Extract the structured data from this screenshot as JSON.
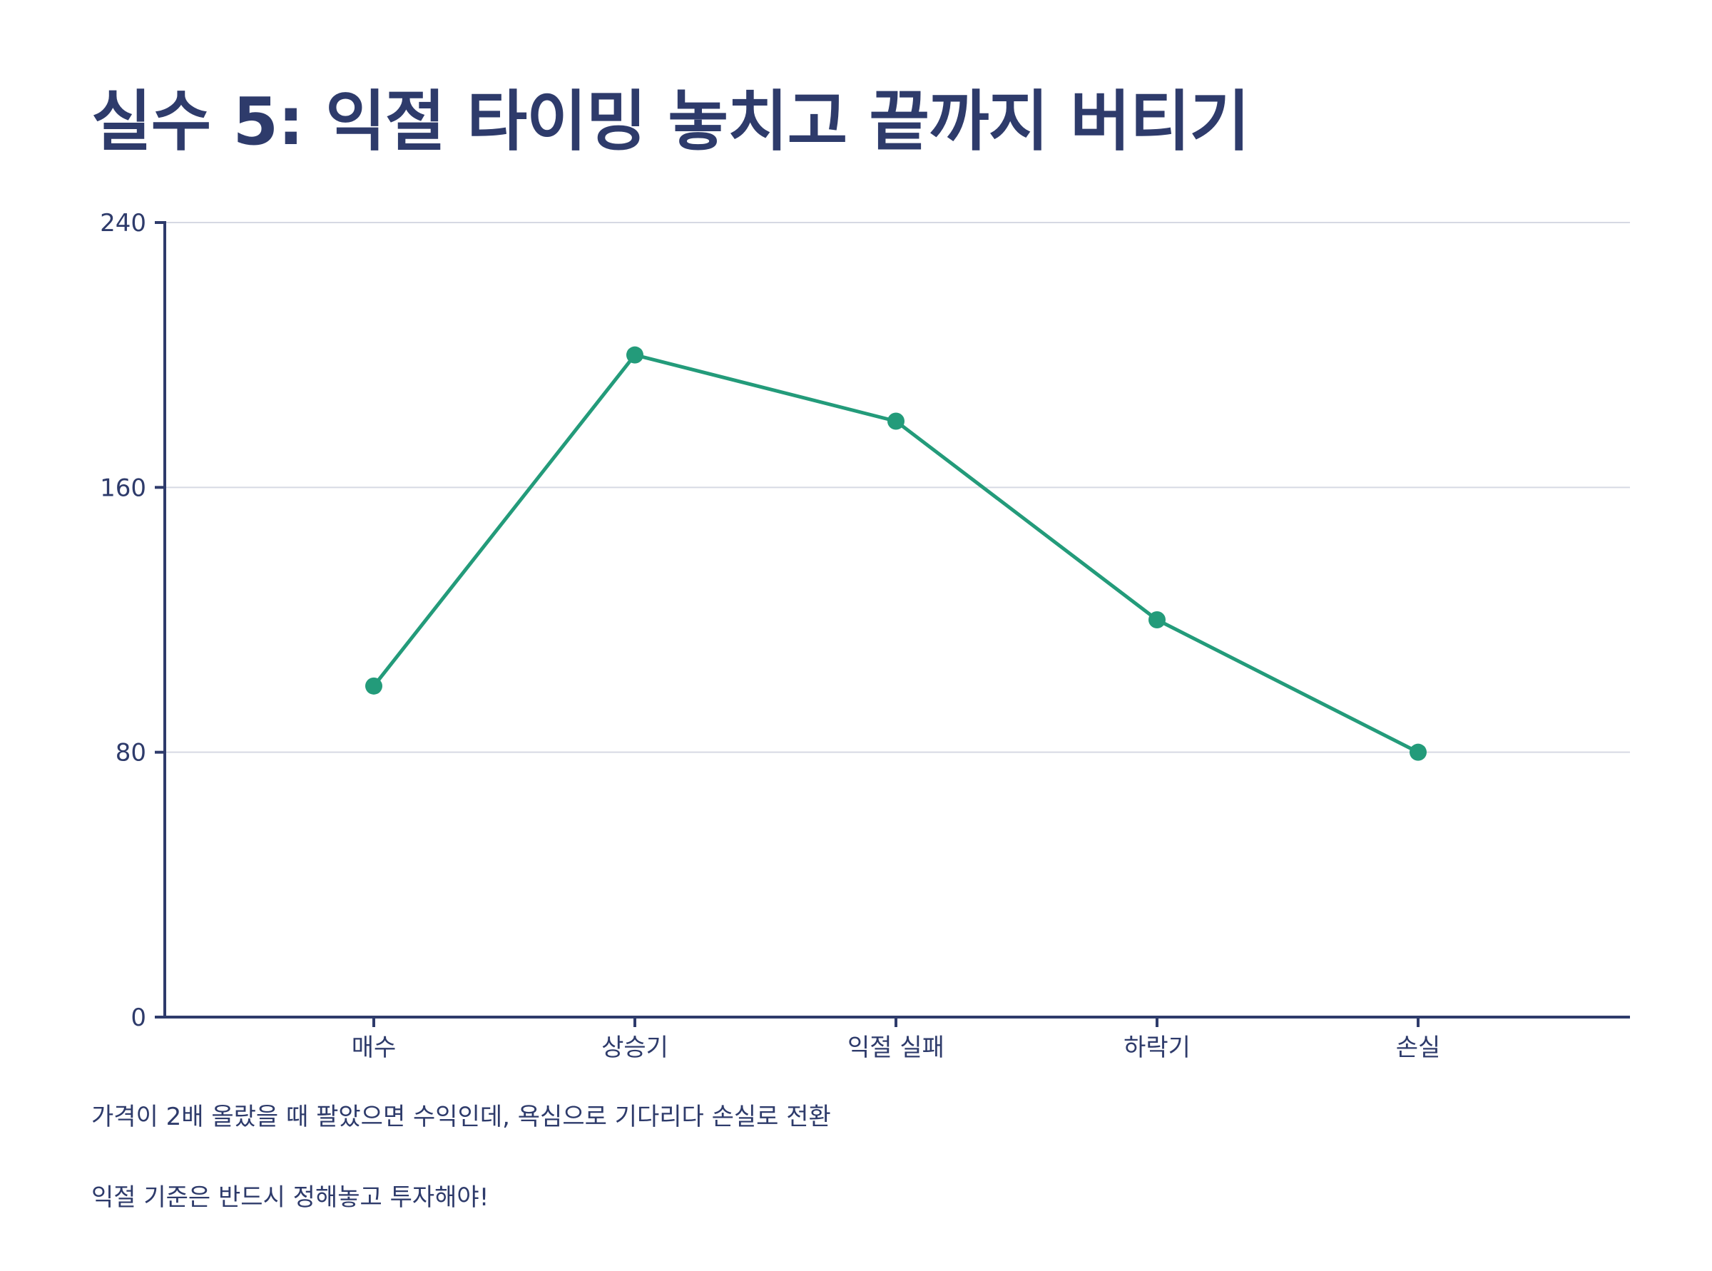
{
  "title": "실수 5: 익절 타이밍 놓치고 끝까지 버티기",
  "chart_data": {
    "type": "line",
    "categories": [
      "매수",
      "상승기",
      "익절 실패",
      "하락기",
      "손실"
    ],
    "values": [
      100,
      200,
      180,
      120,
      80
    ],
    "yticks": [
      "0",
      "80",
      "160",
      "240"
    ],
    "ylim": [
      0,
      240
    ],
    "grid": true,
    "line_color": "#239b7a",
    "axis_color": "#2e3b6b",
    "grid_color": "#d6d9e3"
  },
  "notes": [
    "가격이 2배 올랐을 때 팔았으면 수익인데, 욕심으로 기다리다 손실로 전환",
    "익절 기준은 반드시 정해놓고 투자해야!"
  ]
}
